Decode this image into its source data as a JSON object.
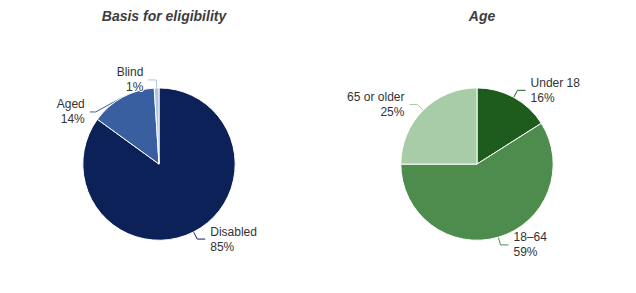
{
  "chart_data": [
    {
      "type": "pie",
      "title": "Basis for eligibility",
      "categories": [
        "Disabled",
        "Aged",
        "Blind"
      ],
      "values": [
        85,
        14,
        1
      ],
      "value_labels": [
        "85%",
        "14%",
        "1%"
      ],
      "colors": [
        "#0d2159",
        "#3a5fa0",
        "#b0c4de"
      ]
    },
    {
      "type": "pie",
      "title": "Age",
      "categories": [
        "Under 18",
        "18–64",
        "65 or older"
      ],
      "values": [
        16,
        59,
        25
      ],
      "value_labels": [
        "16%",
        "59%",
        "25%"
      ],
      "colors": [
        "#1e5c1e",
        "#4d8c4d",
        "#a8cba8"
      ]
    }
  ]
}
